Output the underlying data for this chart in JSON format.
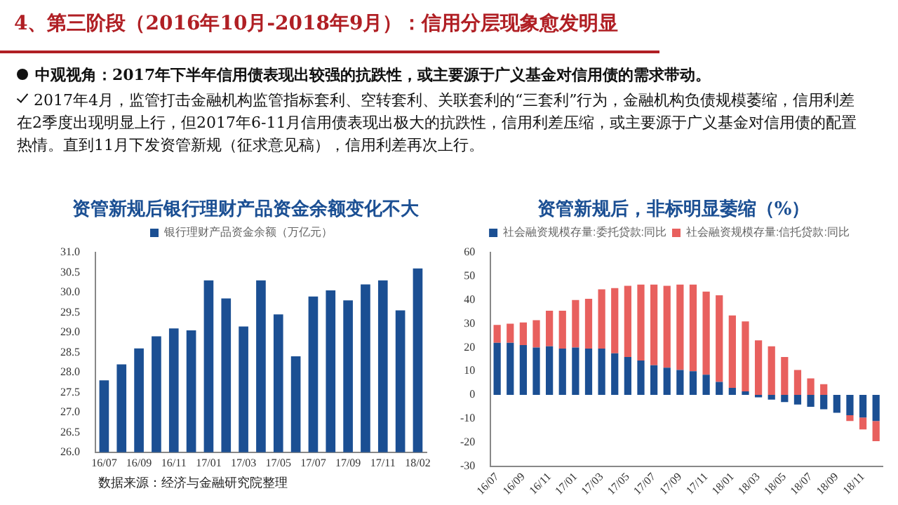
{
  "chart_data": [
    {
      "type": "other",
      "title": "4、第三阶段（2016年10月-2018年9月）：信用分层现象愈发明显",
      "annotations": [
        "中观视角：2017年下半年信用债表现出较强的抗跌性，或主要源于广义基金对信用债的需求带动。",
        "2017年4月，监管打击金融机构监管指标套利、空转套利、关联套利的“三套利”行为，金融机构负债规模萎缩，信用利差在2季度出现明显上行，但2017年6-11月信用债表现出极大的抗跌性，信用利差压缩，或主要源于广义基金对信用债的配置热情。直到11月下发资管新规（征求意见稿），信用利差再次上行。"
      ]
    },
    {
      "type": "bar",
      "title": "资管新规后银行理财产品资金余额变化不大",
      "categories": [
        "16/07",
        null,
        "16/09",
        null,
        "16/11",
        null,
        "17/01",
        null,
        "17/03",
        null,
        "17/05",
        null,
        "17/07",
        null,
        "17/09",
        null,
        "17/11",
        null,
        "18/02"
      ],
      "series": [
        {
          "name": "银行理财产品资金余额（万亿元）",
          "color": "#1b4f93",
          "values": [
            27.8,
            28.2,
            28.6,
            28.9,
            29.1,
            29.05,
            30.3,
            29.85,
            29.15,
            30.3,
            29.45,
            28.4,
            29.9,
            30.05,
            29.8,
            30.2,
            30.3,
            29.55,
            30.6
          ]
        }
      ],
      "ylim": [
        26,
        31
      ],
      "yticks": [
        {
          "value": 26,
          "label": "26.0"
        },
        {
          "value": 26.5,
          "label": "26.5"
        },
        {
          "value": 27,
          "label": "27.0"
        },
        {
          "value": 27.5,
          "label": "27.5"
        },
        {
          "value": 28,
          "label": "28.0"
        },
        {
          "value": 28.5,
          "label": "28.5"
        },
        {
          "value": 29,
          "label": "29.0"
        },
        {
          "value": 29.5,
          "label": "29.5"
        },
        {
          "value": 30,
          "label": "30.0"
        },
        {
          "value": 30.5,
          "label": "30.5"
        },
        {
          "value": 31,
          "label": "31.0"
        }
      ],
      "legend": "top",
      "grid": false,
      "annotations": [
        "数据来源：经济与金融研究院整理"
      ]
    },
    {
      "type": "bar",
      "title": "资管新规后，非标明显萎缩（%）",
      "stacked": true,
      "categories": [
        "16/07",
        null,
        "16/09",
        null,
        "16/11",
        null,
        "17/01",
        null,
        "17/03",
        null,
        "17/05",
        null,
        "17/07",
        null,
        "17/09",
        null,
        "17/11",
        null,
        "18/01",
        null,
        "18/03",
        null,
        "18/05",
        null,
        "18/07",
        null,
        "18/09",
        null,
        "18/11",
        null
      ],
      "series": [
        {
          "name": "社会融资规模存量:委托贷款:同比",
          "color": "#1b4f93",
          "values": [
            22,
            22,
            21,
            20,
            20.5,
            19.5,
            20,
            19.5,
            19.5,
            17.5,
            16,
            14.5,
            12.5,
            11.5,
            10.5,
            10,
            8.5,
            5.5,
            3,
            1.5,
            -1,
            -2,
            -3,
            -4,
            -5,
            -6,
            -7.5,
            -8.5,
            -9.5,
            -11
          ]
        },
        {
          "name": "社会融资规模存量:信托贷款:同比",
          "color": "#e8605e",
          "values": [
            7.5,
            8,
            9.5,
            11.5,
            15,
            16,
            20,
            21,
            25,
            27.5,
            30,
            32,
            34,
            34.5,
            36,
            36.5,
            35,
            36.5,
            30.5,
            29.5,
            23,
            20.5,
            16,
            10.5,
            7,
            4.5,
            null,
            -2.5,
            -5,
            -8.5
          ]
        }
      ],
      "ylim": [
        -30,
        60
      ],
      "yticks": [
        -30,
        -20,
        -10,
        0,
        10,
        20,
        30,
        40,
        50,
        60
      ],
      "legend": "top",
      "grid": false
    }
  ]
}
